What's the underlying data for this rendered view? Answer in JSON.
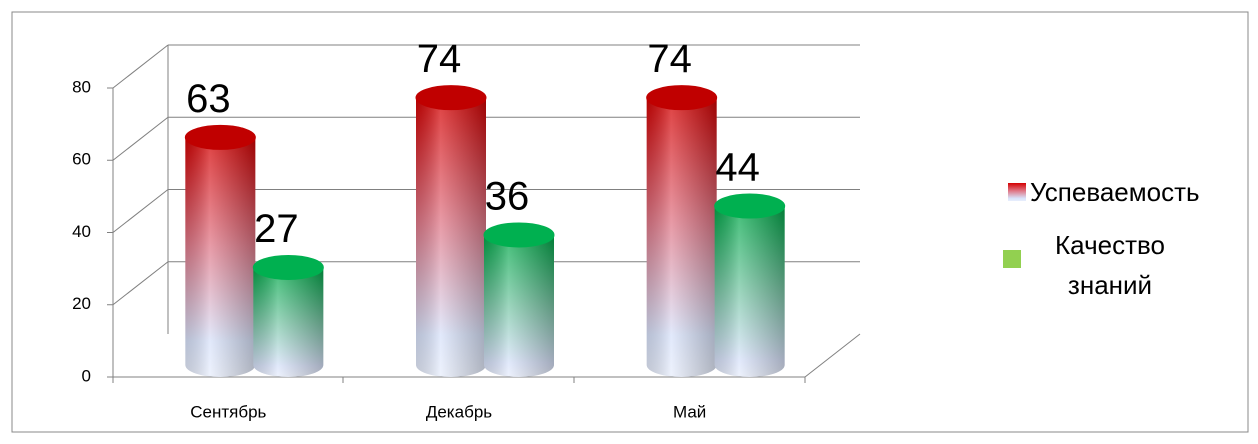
{
  "chart_data": {
    "type": "bar3d",
    "categories": [
      "Сентябрь",
      "Декабрь",
      "Май"
    ],
    "series": [
      {
        "name": "Успеваемость",
        "color": "#c00000",
        "values": [
          63,
          74,
          74
        ]
      },
      {
        "name": "Качество знаний",
        "color": "#00b050",
        "values": [
          27,
          36,
          44
        ]
      }
    ],
    "ylim": [
      0,
      80
    ],
    "yticks": [
      0,
      20,
      40,
      60,
      80
    ],
    "grid": true,
    "legend": "right"
  }
}
